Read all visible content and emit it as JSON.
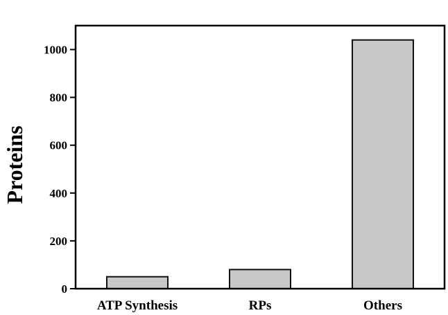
{
  "chart_data": {
    "type": "bar",
    "categories": [
      "ATP Synthesis",
      "RPs",
      "Others"
    ],
    "values": [
      50,
      80,
      1040
    ],
    "title": "",
    "xlabel": "",
    "ylabel": "Proteins",
    "ylim": [
      0,
      1100
    ],
    "yticks": [
      0,
      200,
      400,
      600,
      800,
      1000
    ],
    "grid": false,
    "legend": "none",
    "bar_color": "#c8c8c8",
    "bar_stroke": "#111111"
  }
}
